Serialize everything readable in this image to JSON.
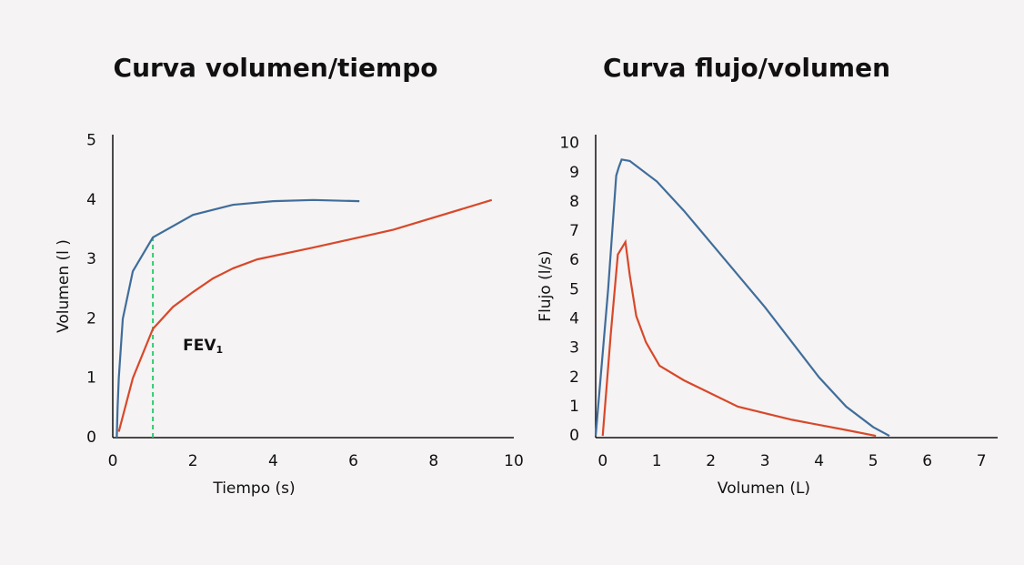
{
  "chart_data": [
    {
      "type": "line",
      "title": "Curva volumen/tiempo",
      "x_label": "Tiempo (s)",
      "y_label": "Volumen (l )",
      "xlim": [
        0,
        10
      ],
      "xticks": [
        0,
        2,
        4,
        6,
        8,
        10
      ],
      "ylim": [
        0,
        5.1
      ],
      "yticks": [
        0,
        1,
        2,
        3,
        4,
        5
      ],
      "series": [
        {
          "color": "#3f6d9b",
          "x": [
            0.1,
            0.12,
            0.15,
            0.25,
            0.5,
            1,
            2,
            3,
            4,
            5,
            6.15
          ],
          "values": [
            0,
            0.5,
            1,
            2,
            2.8,
            3.37,
            3.75,
            3.92,
            3.98,
            4.0,
            3.98
          ]
        },
        {
          "color": "#d8482a",
          "x": [
            0.15,
            0.5,
            1,
            1.5,
            2,
            2.5,
            3,
            3.6,
            5,
            7,
            9.45
          ],
          "values": [
            0.1,
            1.0,
            1.83,
            2.2,
            2.45,
            2.68,
            2.85,
            3.0,
            3.2,
            3.5,
            4.0
          ]
        }
      ],
      "annotation": {
        "text": "FEV",
        "subscript": "1",
        "x": 1,
        "color": "#2ecc71"
      }
    },
    {
      "type": "line",
      "title": "Curva flujo/volumen",
      "x_label": "Volumen (L)",
      "y_label": "Flujo (l/s)",
      "xlim": [
        -0.13,
        7.3
      ],
      "xticks": [
        0,
        1,
        2,
        3,
        4,
        5,
        6,
        7
      ],
      "ylim": [
        -0.06,
        10.3
      ],
      "yticks": [
        0,
        1,
        2,
        3,
        4,
        5,
        6,
        7,
        8,
        9,
        10
      ],
      "series": [
        {
          "color": "#3f6d9b",
          "x": [
            -0.13,
            0.1,
            0.25,
            0.3,
            0.35,
            0.5,
            1,
            1.5,
            2,
            3,
            4,
            4.5,
            5,
            5.3
          ],
          "values": [
            0,
            5,
            8.9,
            9.2,
            9.45,
            9.4,
            8.7,
            7.7,
            6.6,
            4.4,
            2.0,
            1.0,
            0.3,
            0
          ]
        },
        {
          "color": "#d8482a",
          "x": [
            0,
            0.15,
            0.28,
            0.42,
            0.5,
            0.62,
            0.8,
            1.05,
            1.5,
            2.5,
            3.5,
            4.5,
            5.05
          ],
          "values": [
            0,
            3.5,
            6.2,
            6.63,
            5.5,
            4.1,
            3.2,
            2.4,
            1.9,
            1.0,
            0.55,
            0.2,
            0
          ]
        }
      ]
    }
  ]
}
